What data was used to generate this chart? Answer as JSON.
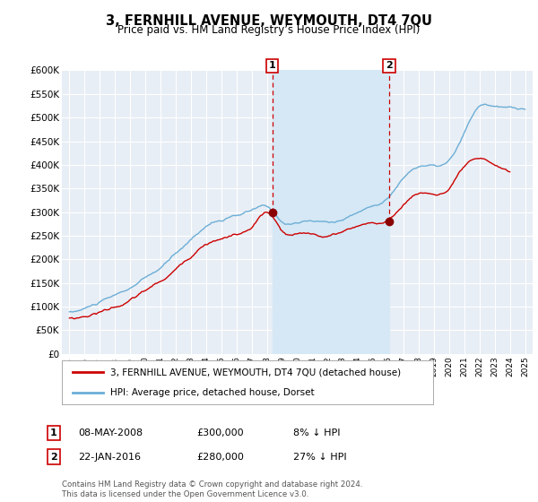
{
  "title": "3, FERNHILL AVENUE, WEYMOUTH, DT4 7QU",
  "subtitle": "Price paid vs. HM Land Registry’s House Price Index (HPI)",
  "ylabel_ticks": [
    "£0",
    "£50K",
    "£100K",
    "£150K",
    "£200K",
    "£250K",
    "£300K",
    "£350K",
    "£400K",
    "£450K",
    "£500K",
    "£550K",
    "£600K"
  ],
  "ytick_values": [
    0,
    50000,
    100000,
    150000,
    200000,
    250000,
    300000,
    350000,
    400000,
    450000,
    500000,
    550000,
    600000
  ],
  "legend_line1": "3, FERNHILL AVENUE, WEYMOUTH, DT4 7QU (detached house)",
  "legend_line2": "HPI: Average price, detached house, Dorset",
  "table_row1": [
    "1",
    "08-MAY-2008",
    "£300,000",
    "8% ↓ HPI"
  ],
  "table_row2": [
    "2",
    "22-JAN-2016",
    "£280,000",
    "27% ↓ HPI"
  ],
  "footer": "Contains HM Land Registry data © Crown copyright and database right 2024.\nThis data is licensed under the Open Government Licence v3.0.",
  "hpi_color": "#6baed6",
  "price_color": "#cc0000",
  "sale_marker_color": "#8b0000",
  "dashed_line_color": "#cc0000",
  "shade_color": "#d6e8f5",
  "background_color": "#ffffff",
  "plot_bg_color": "#e8eef5",
  "grid_color": "#ffffff",
  "sale1_year": 2008.35,
  "sale1_price": 300000,
  "sale2_year": 2016.05,
  "sale2_price": 280000,
  "xmin": 1994.5,
  "xmax": 2025.5,
  "ymin": 0,
  "ymax": 600000
}
